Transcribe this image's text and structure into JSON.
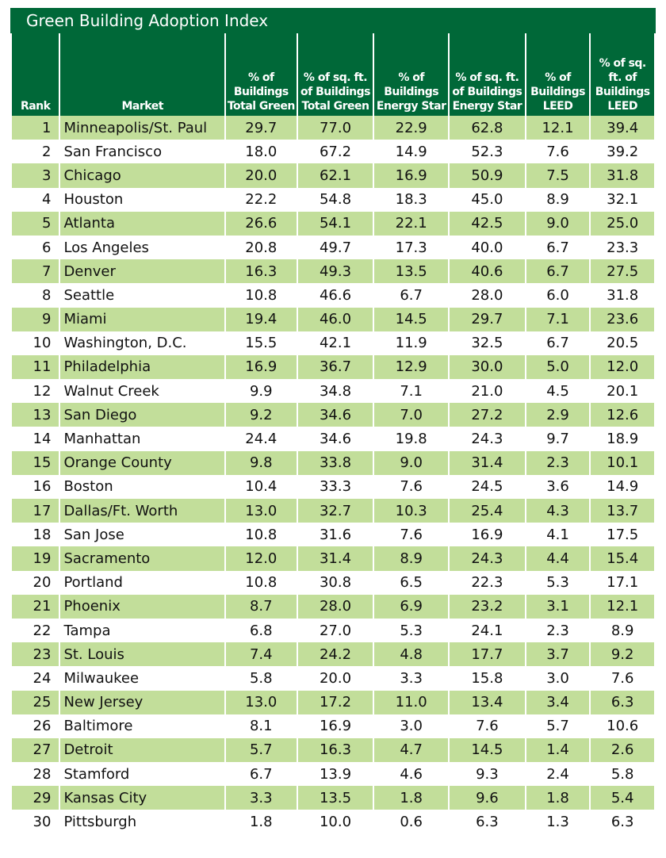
{
  "chart_data": {
    "type": "table",
    "title": "Green Building Adoption Index",
    "columns": [
      "Rank",
      "Market",
      "% of Buildings Total Green",
      "% of sq. ft. of Buildings Total Green",
      "% of Buildings Energy Star",
      "% of sq. ft. of Buildings Energy Star",
      "% of Buildings LEED",
      "% of sq. ft. of Buildings LEED"
    ],
    "rows": [
      [
        "1",
        "Minneapolis/St. Paul",
        "29.7",
        "77.0",
        "22.9",
        "62.8",
        "12.1",
        "39.4"
      ],
      [
        "2",
        "San Francisco",
        "18.0",
        "67.2",
        "14.9",
        "52.3",
        "7.6",
        "39.2"
      ],
      [
        "3",
        "Chicago",
        "20.0",
        "62.1",
        "16.9",
        "50.9",
        "7.5",
        "31.8"
      ],
      [
        "4",
        "Houston",
        "22.2",
        "54.8",
        "18.3",
        "45.0",
        "8.9",
        "32.1"
      ],
      [
        "5",
        "Atlanta",
        "26.6",
        "54.1",
        "22.1",
        "42.5",
        "9.0",
        "25.0"
      ],
      [
        "6",
        "Los Angeles",
        "20.8",
        "49.7",
        "17.3",
        "40.0",
        "6.7",
        "23.3"
      ],
      [
        "7",
        "Denver",
        "16.3",
        "49.3",
        "13.5",
        "40.6",
        "6.7",
        "27.5"
      ],
      [
        "8",
        "Seattle",
        "10.8",
        "46.6",
        "6.7",
        "28.0",
        "6.0",
        "31.8"
      ],
      [
        "9",
        "Miami",
        "19.4",
        "46.0",
        "14.5",
        "29.7",
        "7.1",
        "23.6"
      ],
      [
        "10",
        "Washington, D.C.",
        "15.5",
        "42.1",
        "11.9",
        "32.5",
        "6.7",
        "20.5"
      ],
      [
        "11",
        "Philadelphia",
        "16.9",
        "36.7",
        "12.9",
        "30.0",
        "5.0",
        "12.0"
      ],
      [
        "12",
        "Walnut Creek",
        "9.9",
        "34.8",
        "7.1",
        "21.0",
        "4.5",
        "20.1"
      ],
      [
        "13",
        "San Diego",
        "9.2",
        "34.6",
        "7.0",
        "27.2",
        "2.9",
        "12.6"
      ],
      [
        "14",
        "Manhattan",
        "24.4",
        "34.6",
        "19.8",
        "24.3",
        "9.7",
        "18.9"
      ],
      [
        "15",
        "Orange County",
        "9.8",
        "33.8",
        "9.0",
        "31.4",
        "2.3",
        "10.1"
      ],
      [
        "16",
        "Boston",
        "10.4",
        "33.3",
        "7.6",
        "24.5",
        "3.6",
        "14.9"
      ],
      [
        "17",
        "Dallas/Ft. Worth",
        "13.0",
        "32.7",
        "10.3",
        "25.4",
        "4.3",
        "13.7"
      ],
      [
        "18",
        "San Jose",
        "10.8",
        "31.6",
        "7.6",
        "16.9",
        "4.1",
        "17.5"
      ],
      [
        "19",
        "Sacramento",
        "12.0",
        "31.4",
        "8.9",
        "24.3",
        "4.4",
        "15.4"
      ],
      [
        "20",
        "Portland",
        "10.8",
        "30.8",
        "6.5",
        "22.3",
        "5.3",
        "17.1"
      ],
      [
        "21",
        "Phoenix",
        "8.7",
        "28.0",
        "6.9",
        "23.2",
        "3.1",
        "12.1"
      ],
      [
        "22",
        "Tampa",
        "6.8",
        "27.0",
        "5.3",
        "24.1",
        "2.3",
        "8.9"
      ],
      [
        "23",
        "St. Louis",
        "7.4",
        "24.2",
        "4.8",
        "17.7",
        "3.7",
        "9.2"
      ],
      [
        "24",
        "Milwaukee",
        "5.8",
        "20.0",
        "3.3",
        "15.8",
        "3.0",
        "7.6"
      ],
      [
        "25",
        "New Jersey",
        "13.0",
        "17.2",
        "11.0",
        "13.4",
        "3.4",
        "6.3"
      ],
      [
        "26",
        "Baltimore",
        "8.1",
        "16.9",
        "3.0",
        "7.6",
        "5.7",
        "10.6"
      ],
      [
        "27",
        "Detroit",
        "5.7",
        "16.3",
        "4.7",
        "14.5",
        "1.4",
        "2.6"
      ],
      [
        "28",
        "Stamford",
        "6.7",
        "13.9",
        "4.6",
        "9.3",
        "2.4",
        "5.8"
      ],
      [
        "29",
        "Kansas City",
        "3.3",
        "13.5",
        "1.8",
        "9.6",
        "1.8",
        "5.4"
      ],
      [
        "30",
        "Pittsburgh",
        "1.8",
        "10.0",
        "0.6",
        "6.3",
        "1.3",
        "6.3"
      ]
    ]
  },
  "header_lines": [
    [
      "Rank"
    ],
    [
      "Market"
    ],
    [
      "% of",
      "Buildings",
      "Total Green"
    ],
    [
      "% of sq. ft.",
      "of Buildings",
      "Total Green"
    ],
    [
      "% of",
      "Buildings",
      "Energy Star"
    ],
    [
      "% of sq. ft.",
      "of Buildings",
      "Energy Star"
    ],
    [
      "% of",
      "Buildings",
      "LEED"
    ],
    [
      "% of sq.",
      "ft. of",
      "Buildings",
      "LEED"
    ]
  ],
  "colors": {
    "header_green": "#006838",
    "row_band_green": "#c2de9a",
    "row_white": "#ffffff"
  }
}
